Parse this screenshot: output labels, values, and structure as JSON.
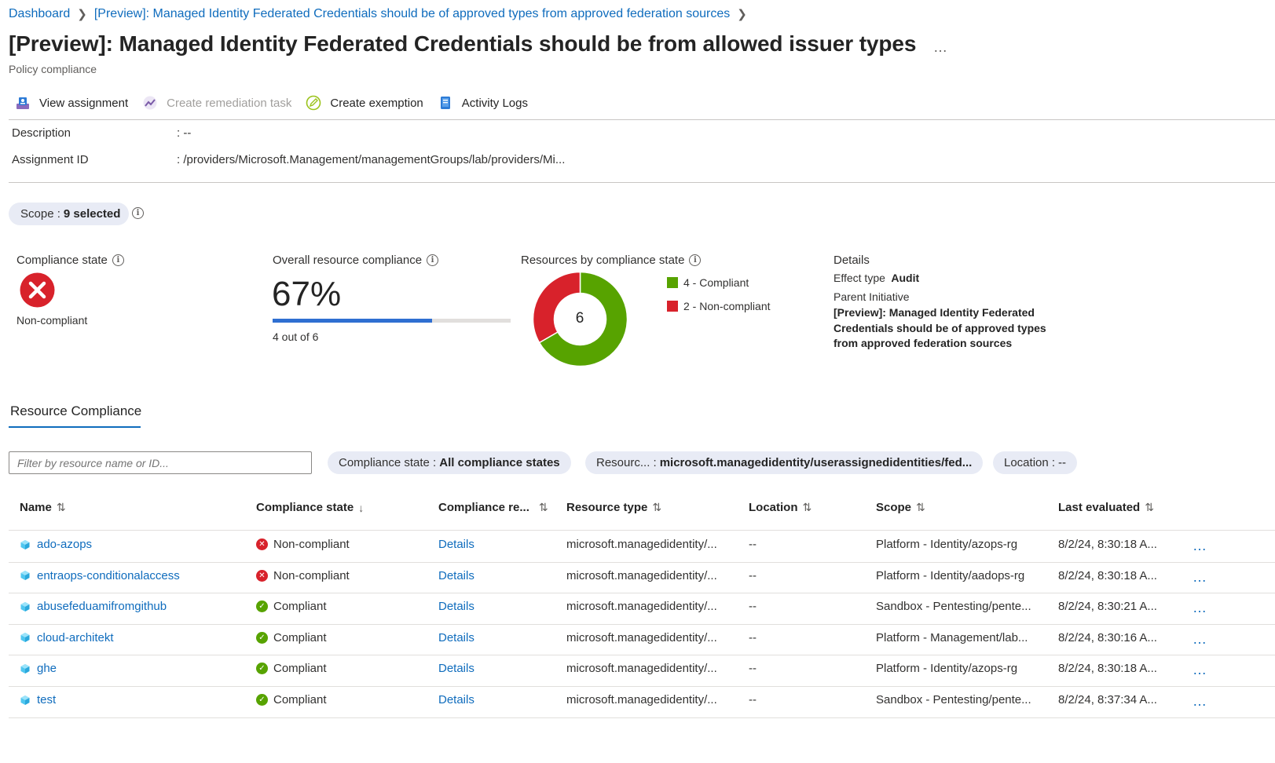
{
  "breadcrumb": {
    "items": [
      "Dashboard",
      "[Preview]: Managed Identity Federated Credentials should be of approved types from approved federation sources"
    ]
  },
  "page": {
    "title": "[Preview]: Managed Identity Federated Credentials should be from allowed issuer types",
    "more": "…",
    "subtitle": "Policy compliance"
  },
  "toolbar": {
    "view_assignment": "View assignment",
    "create_remediation": "Create remediation task",
    "create_exemption": "Create exemption",
    "activity_logs": "Activity Logs"
  },
  "essentials": {
    "description_label": "Description",
    "description_value": ":  --",
    "assignment_label": "Assignment ID",
    "assignment_value": ":  /providers/Microsoft.Management/managementGroups/lab/providers/Mi..."
  },
  "scope": {
    "label": "Scope :",
    "value": "9 selected"
  },
  "compliance_state": {
    "title": "Compliance state",
    "value": "Non-compliant"
  },
  "overall": {
    "title": "Overall resource compliance",
    "percent_text": "67%",
    "fraction": 0.67,
    "caption": "4 out of 6"
  },
  "by_state": {
    "title": "Resources by compliance state",
    "total": "6",
    "legend": [
      {
        "label": "4 - Compliant",
        "color": "#57a300",
        "count": 4
      },
      {
        "label": "2 - Non-compliant",
        "color": "#d8222b",
        "count": 2
      }
    ]
  },
  "details": {
    "heading": "Details",
    "effect_label": "Effect type",
    "effect_value": "Audit",
    "parent_label": "Parent Initiative",
    "parent_value": "[Preview]: Managed Identity Federated Credentials should be of approved types from approved federation sources"
  },
  "tabs": {
    "resource_compliance": "Resource Compliance"
  },
  "filters": {
    "search_placeholder": "Filter by resource name or ID...",
    "compliance_label": "Compliance state :",
    "compliance_value": "All compliance states",
    "resource_label": "Resourc...  :",
    "resource_value": "microsoft.managedidentity/userassignedidentities/fed...",
    "location_label": "Location :",
    "location_value": "--"
  },
  "table": {
    "columns": {
      "name": "Name",
      "state": "Compliance state",
      "reason": "Compliance re...",
      "type": "Resource type",
      "location": "Location",
      "scope": "Scope",
      "last": "Last evaluated"
    },
    "sort_glyphs": {
      "both": "⇅",
      "down": "↓"
    },
    "rows": [
      {
        "name": "ado-azops",
        "state": "Non-compliant",
        "reason": "Details",
        "type": "microsoft.managedidentity/...",
        "location": "--",
        "scope": "Platform - Identity/azops-rg",
        "last": "8/2/24, 8:30:18 A...",
        "more": "…"
      },
      {
        "name": "entraops-conditionalaccess",
        "state": "Non-compliant",
        "reason": "Details",
        "type": "microsoft.managedidentity/...",
        "location": "--",
        "scope": "Platform - Identity/aadops-rg",
        "last": "8/2/24, 8:30:18 A...",
        "more": "…"
      },
      {
        "name": "abusefeduamifromgithub",
        "state": "Compliant",
        "reason": "Details",
        "type": "microsoft.managedidentity/...",
        "location": "--",
        "scope": "Sandbox - Pentesting/pente...",
        "last": "8/2/24, 8:30:21 A...",
        "more": "…"
      },
      {
        "name": "cloud-architekt",
        "state": "Compliant",
        "reason": "Details",
        "type": "microsoft.managedidentity/...",
        "location": "--",
        "scope": "Platform - Management/lab...",
        "last": "8/2/24, 8:30:16 A...",
        "more": "…"
      },
      {
        "name": "ghe",
        "state": "Compliant",
        "reason": "Details",
        "type": "microsoft.managedidentity/...",
        "location": "--",
        "scope": "Platform - Identity/azops-rg",
        "last": "8/2/24, 8:30:18 A...",
        "more": "…"
      },
      {
        "name": "test",
        "state": "Compliant",
        "reason": "Details",
        "type": "microsoft.managedidentity/...",
        "location": "--",
        "scope": "Sandbox - Pentesting/pente...",
        "last": "8/2/24, 8:37:34 A...",
        "more": "…"
      }
    ]
  },
  "colors": {
    "accent": "#0f6cbd",
    "compliant": "#57a300",
    "noncompliant": "#d8222b"
  }
}
